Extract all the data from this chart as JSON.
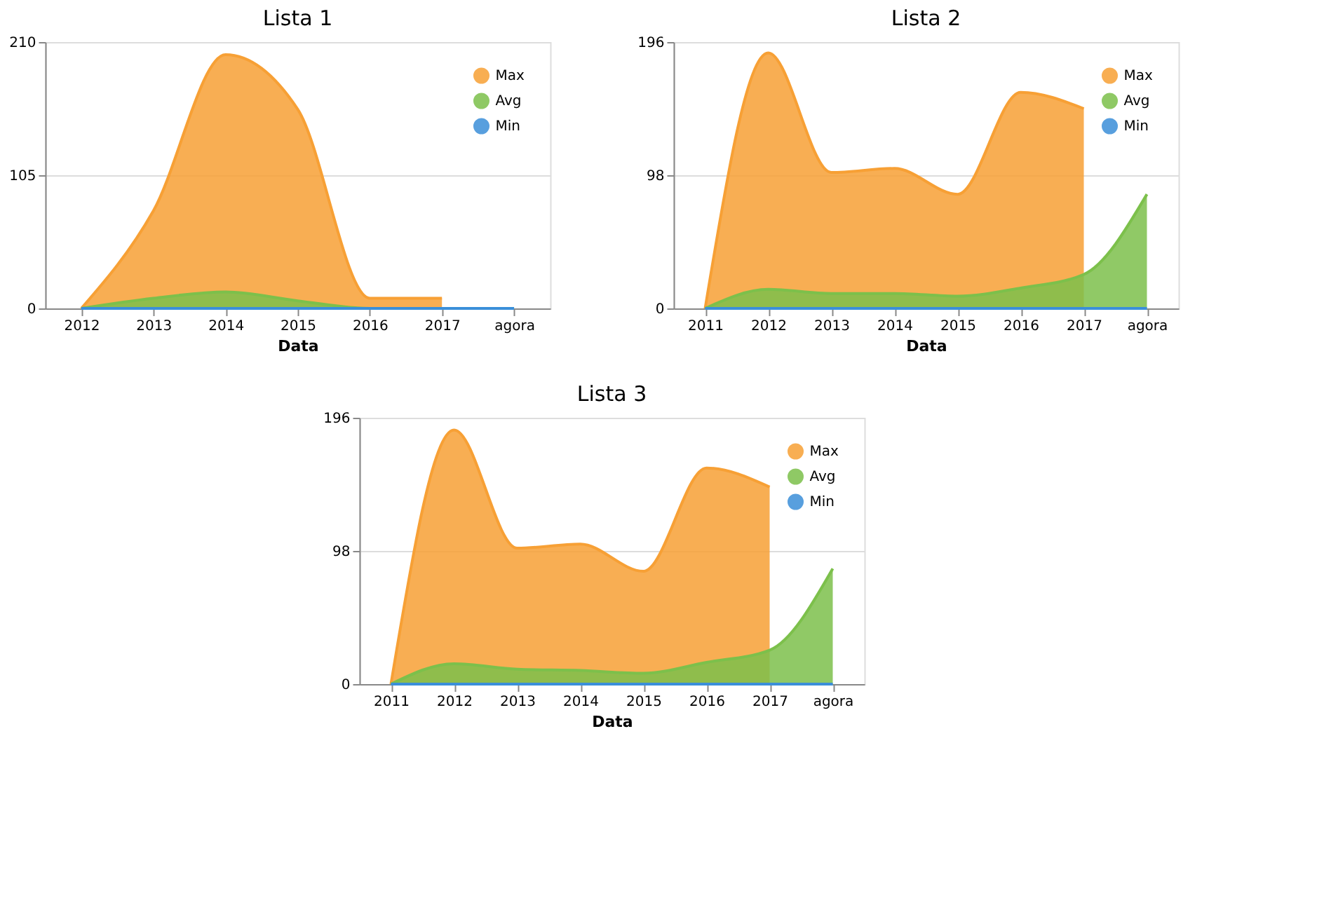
{
  "chart_data": [
    {
      "type": "area",
      "title": "Lista 1",
      "xlabel": "Data",
      "categories": [
        "2012",
        "2013",
        "2014",
        "2015",
        "2016",
        "2017",
        "agora"
      ],
      "ylim": [
        0,
        210
      ],
      "yticks": [
        0,
        105,
        210
      ],
      "grid": "y",
      "legend": "top right",
      "series": [
        {
          "name": "Max",
          "color": "#f7a035",
          "values": [
            0,
            77,
            200,
            157,
            8,
            8,
            null
          ]
        },
        {
          "name": "Avg",
          "color": "#7cc04b",
          "values": [
            0,
            8,
            13,
            6,
            0,
            0,
            0
          ]
        },
        {
          "name": "Min",
          "color": "#3b8fd9",
          "type": "line",
          "values": [
            0,
            0,
            0,
            0,
            0,
            0,
            0
          ]
        }
      ]
    },
    {
      "type": "area",
      "title": "Lista 2",
      "xlabel": "Data",
      "categories": [
        "2011",
        "2012",
        "2013",
        "2014",
        "2015",
        "2016",
        "2017",
        "agora"
      ],
      "ylim": [
        0,
        196
      ],
      "yticks": [
        0,
        98,
        196
      ],
      "grid": "y",
      "legend": "top right",
      "series": [
        {
          "name": "Max",
          "color": "#f7a035",
          "values": [
            0,
            188,
            100,
            103,
            84,
            159,
            147,
            null
          ]
        },
        {
          "name": "Avg",
          "color": "#7cc04b",
          "values": [
            0,
            14,
            11,
            11,
            9,
            15,
            25,
            84
          ]
        },
        {
          "name": "Min",
          "color": "#3b8fd9",
          "type": "line",
          "values": [
            0,
            0,
            0,
            0,
            0,
            0,
            0,
            0
          ]
        }
      ]
    },
    {
      "type": "area",
      "title": "Lista 3",
      "xlabel": "Data",
      "categories": [
        "2011",
        "2012",
        "2013",
        "2014",
        "2015",
        "2016",
        "2017",
        "agora"
      ],
      "ylim": [
        0,
        196
      ],
      "yticks": [
        0,
        98,
        196
      ],
      "grid": "y",
      "legend": "top right",
      "series": [
        {
          "name": "Max",
          "color": "#f7a035",
          "values": [
            0,
            187,
            100,
            103,
            83,
            159,
            145,
            null
          ]
        },
        {
          "name": "Avg",
          "color": "#7cc04b",
          "values": [
            0,
            15,
            11,
            10,
            8,
            16,
            25,
            85
          ]
        },
        {
          "name": "Min",
          "color": "#3b8fd9",
          "type": "line",
          "values": [
            0,
            0,
            0,
            0,
            0,
            0,
            0,
            0
          ]
        }
      ]
    }
  ]
}
